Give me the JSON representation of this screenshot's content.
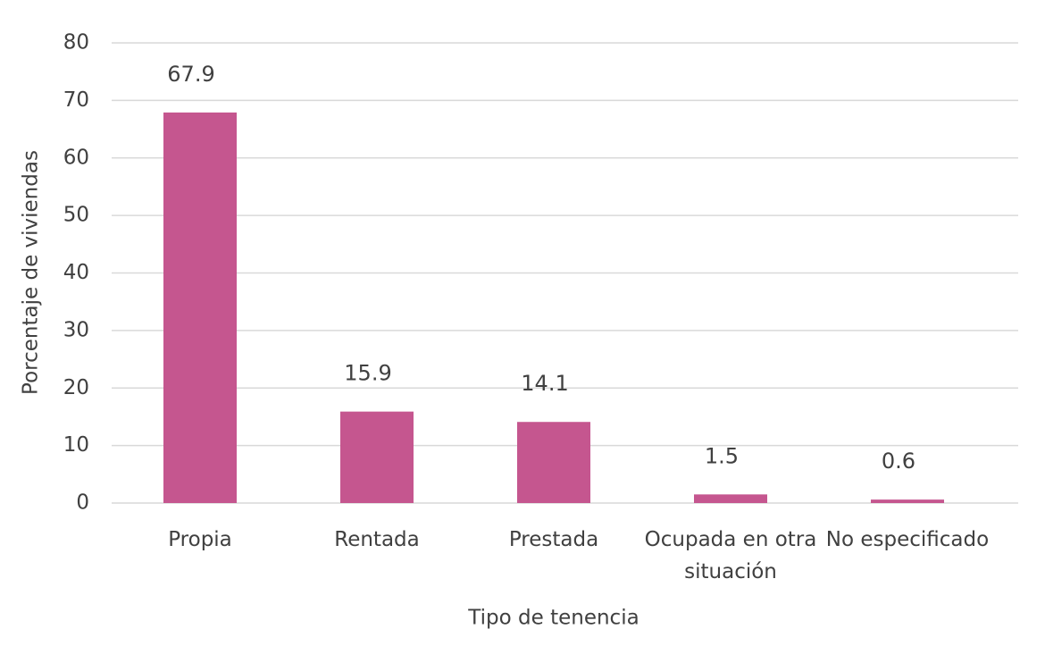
{
  "chart_data": {
    "type": "bar",
    "x_label": "Tipo de tenencia",
    "y_label": "Porcentaje de viviendas",
    "categories": [
      "Propia",
      "Rentada",
      "Prestada",
      "Ocupada en otra situación",
      "No especificado"
    ],
    "values": [
      67.9,
      15.9,
      14.1,
      1.5,
      0.6
    ],
    "color": "#c5568f",
    "ylim": [
      0,
      80
    ],
    "yticks": [
      0,
      10,
      20,
      30,
      40,
      50,
      60,
      70,
      80
    ],
    "grid": true
  }
}
